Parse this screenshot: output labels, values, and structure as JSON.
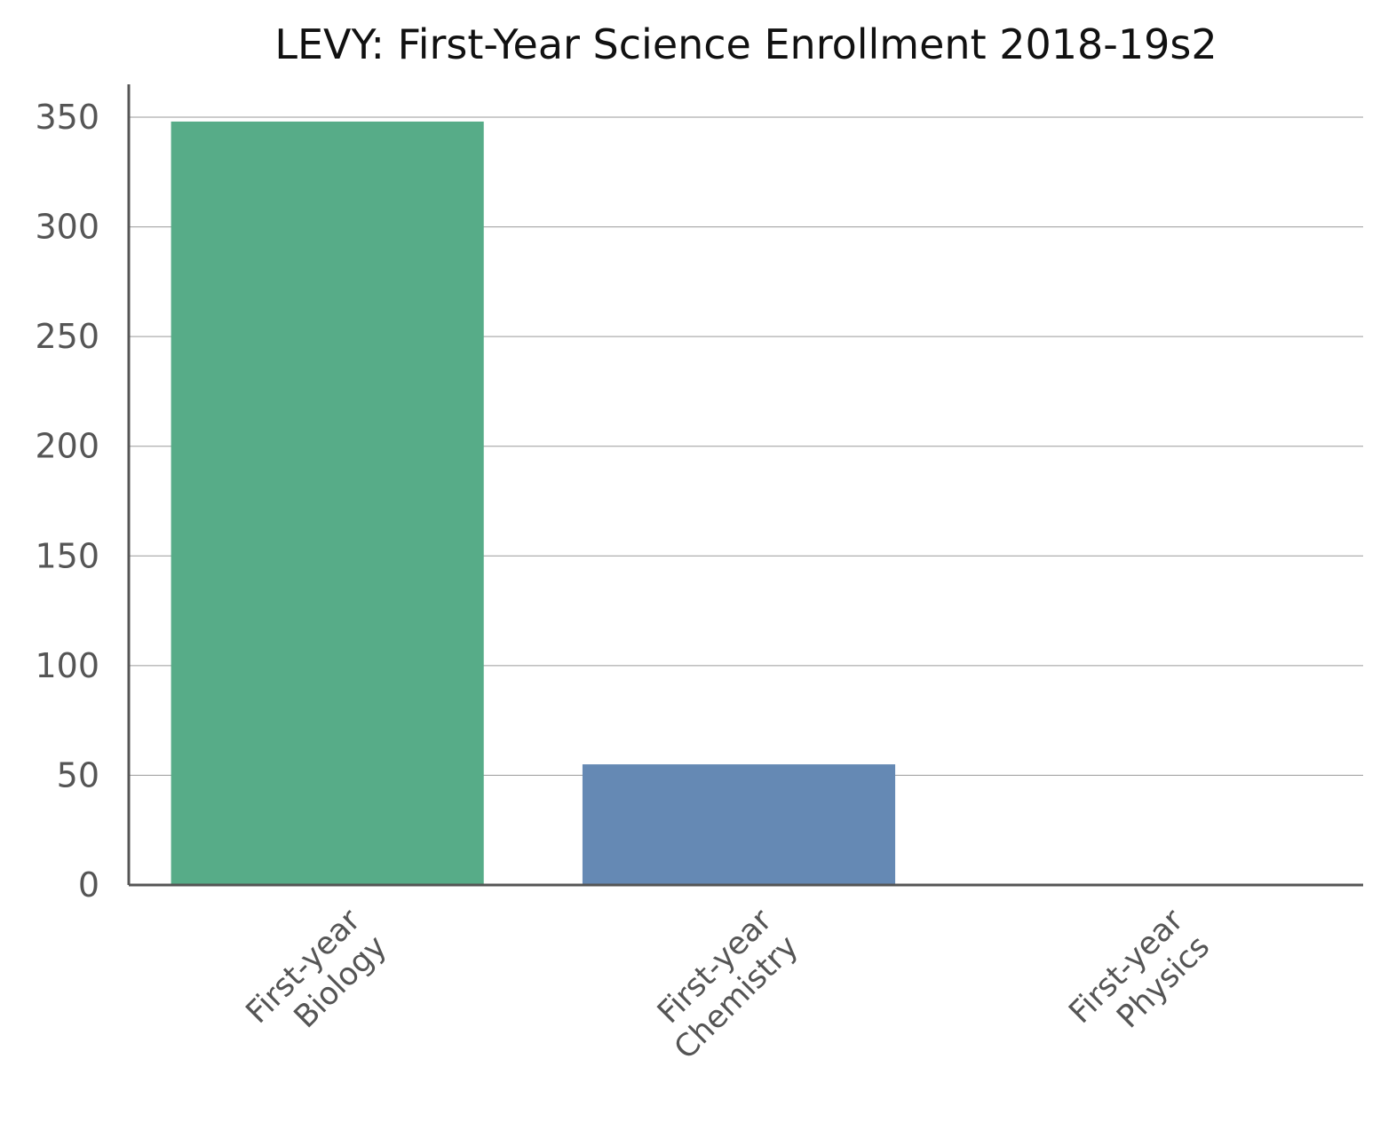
{
  "chart_data": {
    "type": "bar",
    "title": "LEVY: First-Year Science Enrollment 2018-19s2",
    "xlabel": "",
    "ylabel": "",
    "categories": [
      [
        "First-year",
        "Biology"
      ],
      [
        "First-year",
        "Chemistry"
      ],
      [
        "First-year",
        "Physics"
      ]
    ],
    "values": [
      348,
      55,
      0
    ],
    "bar_colors": [
      "#57ac88",
      "#6589b4",
      "#6589b4"
    ],
    "ylim": [
      0,
      365
    ],
    "yticks": [
      0,
      50,
      100,
      150,
      200,
      250,
      300,
      350
    ],
    "grid": true,
    "legend": "none"
  }
}
